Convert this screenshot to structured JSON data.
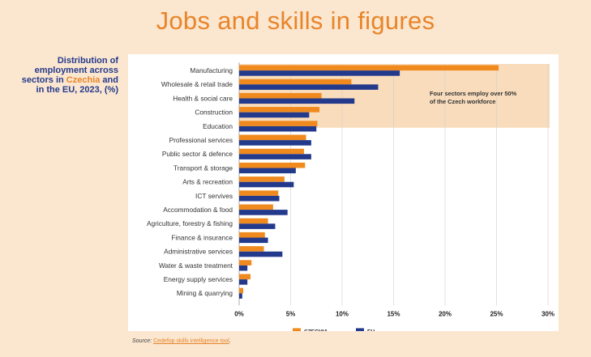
{
  "title": "Jobs and skills in figures",
  "side_label": {
    "before": "Distribution of employment across sectors in ",
    "highlight": "Czechia",
    "after": " and in the EU, 2023, (%)"
  },
  "source": {
    "prefix": "Source",
    "colon": ": ",
    "link": "Cedefop skills intelligence tool",
    "suffix": "."
  },
  "colors": {
    "czechia": "#f08a1e",
    "eu": "#233a8c",
    "highlight": "#f9dcbc",
    "accent": "#e8852a"
  },
  "chart_data": {
    "type": "bar",
    "orientation": "horizontal",
    "title": "Distribution of employment across sectors in Czechia and in the EU, 2023, (%)",
    "categories": [
      "Manufacturing",
      "Wholesale & retail trade",
      "Health & social care",
      "Construction",
      "Education",
      "Professional services",
      "Public sector & defence",
      "Transport & storage",
      "Arts & recreation",
      "ICT servives",
      "Accommodation & food",
      "Agriculture, forestry & fishing",
      "Finance & insurance",
      "Administrative services",
      "Water & waste treatment",
      "Energy supply services",
      "Mining & quarrying"
    ],
    "series": [
      {
        "name": "CZECHIA",
        "values": [
          25.2,
          10.9,
          8.0,
          7.8,
          7.6,
          6.5,
          6.3,
          6.4,
          4.4,
          3.8,
          3.3,
          2.8,
          2.5,
          2.4,
          1.2,
          1.1,
          0.4
        ]
      },
      {
        "name": "EU",
        "values": [
          15.6,
          13.5,
          11.2,
          6.8,
          7.5,
          7.0,
          7.0,
          5.5,
          5.3,
          3.9,
          4.7,
          3.5,
          2.8,
          4.2,
          0.8,
          0.8,
          0.3
        ]
      }
    ],
    "xlim": [
      0,
      30
    ],
    "xticks": [
      "0%",
      "5%",
      "10%",
      "15%",
      "20%",
      "25%",
      "30%"
    ],
    "xtick_values": [
      0,
      5,
      10,
      15,
      20,
      25,
      30
    ],
    "legend": [
      "CZECHIA",
      "EU"
    ],
    "legend_position": "bottom-center",
    "highlight_rows": 4,
    "annotation": "Four sectors employ over 50% of the Czech workforce",
    "annotation_lines": [
      "Four sectors employ over 50%",
      "of the Czech workforce"
    ],
    "grid": "vertical"
  }
}
